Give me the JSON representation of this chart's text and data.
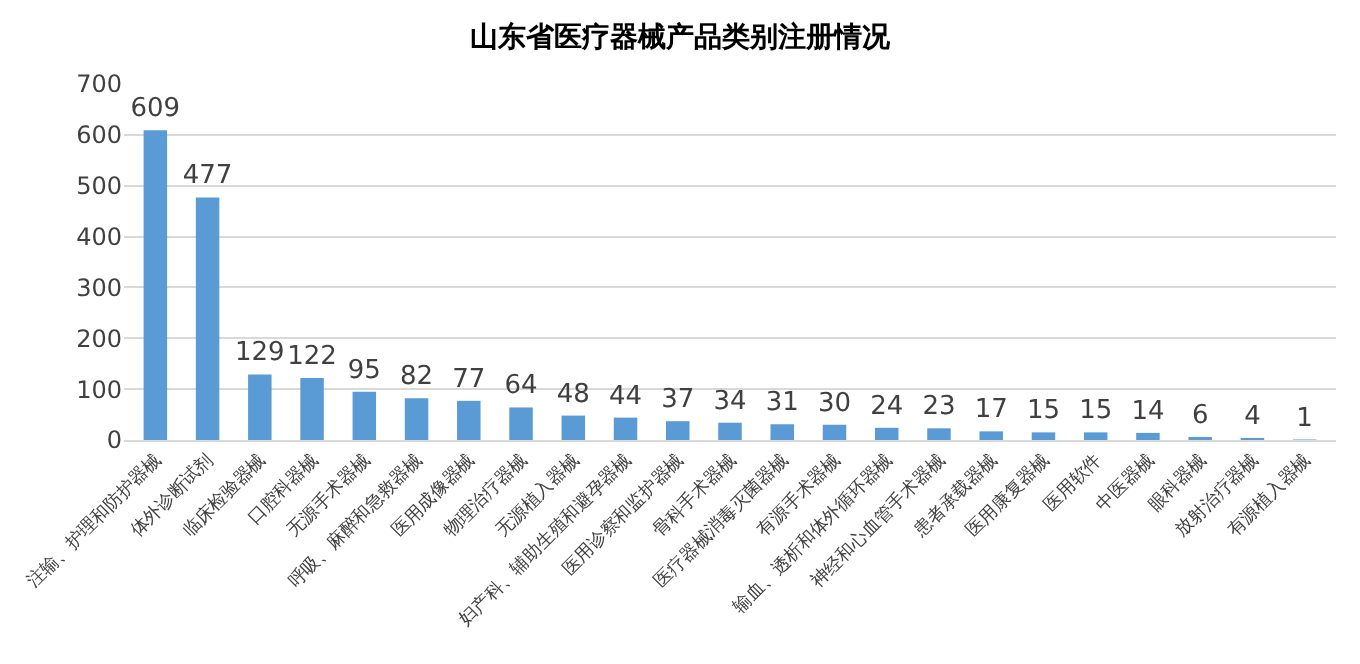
{
  "chart_data": {
    "type": "bar",
    "title": "山东省医疗器械产品类别注册情况",
    "categories": [
      "注输、护理和防护器械",
      "体外诊断试剂",
      "临床检验器械",
      "口腔科器械",
      "无源手术器械",
      "呼吸、麻醉和急救器械",
      "医用成像器械",
      "物理治疗器械",
      "无源植入器械",
      "妇产科、辅助生殖和避孕器械",
      "医用诊察和监护器械",
      "骨科手术器械",
      "医疗器械消毒灭菌器械",
      "有源手术器械",
      "输血、透析和体外循环器械",
      "神经和心血管手术器械",
      "患者承载器械",
      "医用康复器械",
      "医用软件",
      "中医器械",
      "眼科器械",
      "放射治疗器械",
      "有源植入器械"
    ],
    "values": [
      609,
      477,
      129,
      122,
      95,
      82,
      77,
      64,
      48,
      44,
      37,
      34,
      31,
      30,
      24,
      23,
      17,
      15,
      15,
      14,
      6,
      4,
      1
    ],
    "color": "#5b9bd5",
    "ylim": [
      0,
      700
    ],
    "yticks": [
      0,
      100,
      200,
      300,
      400,
      500,
      600,
      700
    ],
    "grid": "y",
    "data_labels": true
  }
}
